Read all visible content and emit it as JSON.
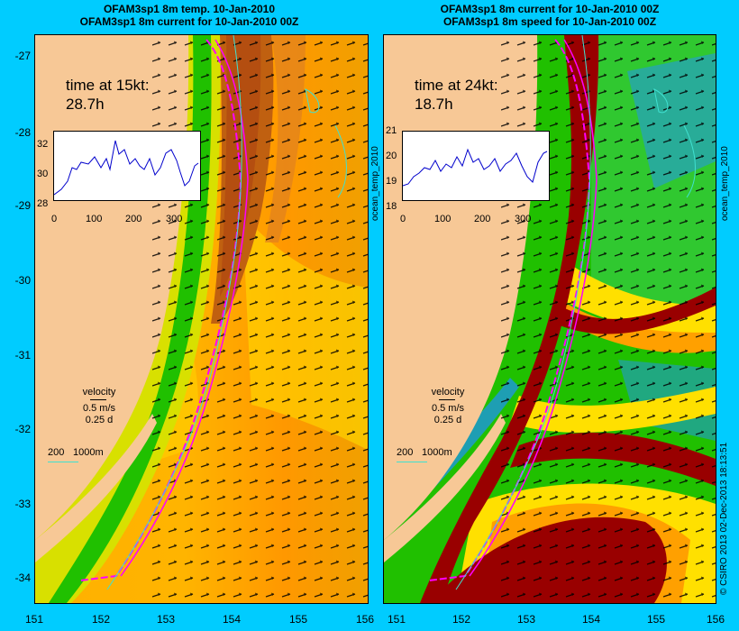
{
  "left_panel": {
    "title_line1": "OFAM3sp1 8m temp. 10-Jan-2010",
    "title_line2": "OFAM3sp1 8m current for 10-Jan-2010 00Z",
    "time_label": "time at 15kt:",
    "time_value": "28.7h",
    "inset_yticks": [
      "32",
      "30",
      "28"
    ],
    "inset_xticks": [
      "0",
      "100",
      "200",
      "300"
    ],
    "velocity_label": "velocity",
    "velocity_speed": "0.5 m/s",
    "velocity_days": "0.25 d",
    "depth_legend_200": "200",
    "depth_legend_1000": "1000m",
    "side_label": "ocean_temp_2010"
  },
  "right_panel": {
    "title_line1": "OFAM3sp1 8m current for 10-Jan-2010 00Z",
    "title_line2": "OFAM3sp1 8m speed for 10-Jan-2010 00Z",
    "time_label": "time at 24kt:",
    "time_value": "18.7h",
    "inset_yticks": [
      "21",
      "20",
      "19",
      "18"
    ],
    "inset_xticks": [
      "0",
      "100",
      "200",
      "300"
    ],
    "velocity_label": "velocity",
    "velocity_speed": "0.5 m/s",
    "velocity_days": "0.25 d",
    "depth_legend_200": "200",
    "depth_legend_1000": "1000m",
    "side_label": "ocean_temp_2010"
  },
  "y_axis_labels": [
    "-27",
    "-28",
    "-29",
    "-30",
    "-31",
    "-32",
    "-33",
    "-34"
  ],
  "left_x_axis_labels": [
    "151",
    "152",
    "153",
    "154",
    "155",
    "156"
  ],
  "right_x_axis_labels": [
    "151",
    "152",
    "153",
    "154",
    "155",
    "156"
  ],
  "credit": "© CSIRO 2013   02-Dec-2013 18:13:51",
  "colors": {
    "background": "#00ccff",
    "land": "#f7c896",
    "warm_orange": "#ffb000",
    "eac_core": "#c05000",
    "speed_max": "#990000",
    "track": "#ff00ff",
    "isobath": "#40e0d0"
  }
}
